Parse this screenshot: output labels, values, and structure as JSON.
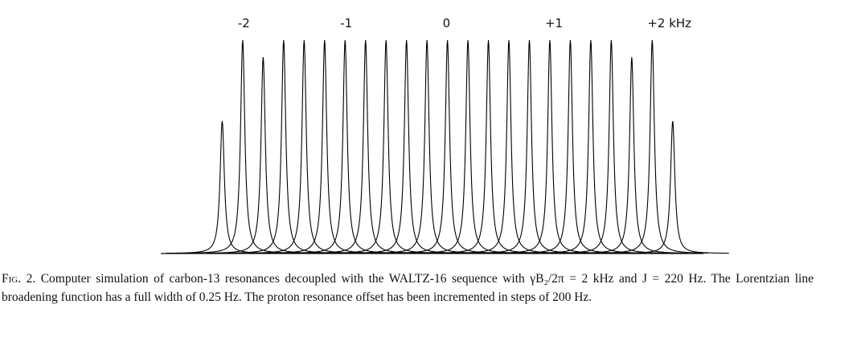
{
  "chart_data": {
    "type": "lorentzian-peaks",
    "x": [
      -2.2,
      -2.0,
      -1.8,
      -1.6,
      -1.4,
      -1.2,
      -1.0,
      -0.8,
      -0.6,
      -0.4,
      -0.2,
      0,
      0.2,
      0.4,
      0.6,
      0.8,
      1.0,
      1.2,
      1.4,
      1.6,
      1.8,
      2.0,
      2.2
    ],
    "values": [
      0.62,
      1.0,
      0.92,
      1.0,
      1.0,
      1.0,
      1.0,
      1.0,
      1.0,
      1.0,
      1.0,
      1.0,
      1.0,
      1.0,
      1.0,
      1.0,
      1.0,
      1.0,
      1.0,
      1.0,
      0.92,
      1.0,
      0.62
    ],
    "color": "#000000",
    "xlim": [
      -2.8,
      2.5
    ],
    "ylim": [
      0,
      1
    ],
    "xticks": [
      -2,
      -1,
      0,
      {
        "value": 1,
        "label": "+1"
      },
      {
        "value": 2,
        "label": "+2 kHz"
      }
    ]
  },
  "caption": {
    "label": "Fig. 2.",
    "text": "Computer simulation of carbon-13 resonances decoupled with the WALTZ-16 sequence with γB₂/2π = 2 kHz and J = 220 Hz. The Lorentzian line broadening function has a full width of 0.25 Hz. The proton resonance offset has been incremented in steps of 200 Hz."
  }
}
